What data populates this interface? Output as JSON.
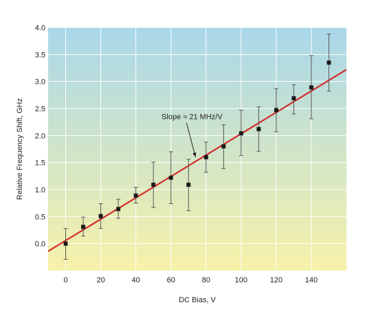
{
  "chart_data": {
    "type": "scatter",
    "xlabel": "DC Bias, V",
    "ylabel": "Relative Frequency Shift, GHz",
    "xlim": [
      -10,
      160
    ],
    "ylim": [
      -0.5,
      4.0
    ],
    "x_ticks": [
      0,
      20,
      40,
      60,
      80,
      100,
      120,
      140
    ],
    "y_ticks": [
      0.0,
      0.5,
      1.0,
      1.5,
      2.0,
      2.5,
      3.0,
      3.5,
      4.0
    ],
    "x_tick_labels": [
      "0",
      "20",
      "40",
      "60",
      "80",
      "100",
      "120",
      "140"
    ],
    "y_tick_labels": [
      "0.0",
      "0.5",
      "1.0",
      "1.5",
      "2.0",
      "2.5",
      "3.0",
      "3.5",
      "4.0"
    ],
    "grid": true,
    "background_gradient": [
      "#a9d7ea",
      "#f7f2a8"
    ],
    "series": [
      {
        "x": [
          0,
          10,
          20,
          30,
          40,
          50,
          60,
          70,
          80,
          90,
          100,
          110,
          120,
          130,
          140,
          150
        ],
        "y": [
          0.0,
          0.31,
          0.51,
          0.64,
          0.89,
          1.09,
          1.22,
          1.09,
          1.6,
          1.8,
          2.04,
          2.12,
          2.47,
          2.69,
          2.89,
          3.35
        ],
        "err_low": [
          -0.29,
          0.14,
          0.28,
          0.47,
          0.75,
          0.67,
          0.74,
          0.61,
          1.32,
          1.39,
          1.63,
          1.71,
          2.07,
          2.4,
          2.31,
          2.82
        ],
        "err_high": [
          0.28,
          0.49,
          0.74,
          0.82,
          1.04,
          1.51,
          1.7,
          1.56,
          1.88,
          2.2,
          2.47,
          2.53,
          2.87,
          2.94,
          3.48,
          3.88
        ],
        "marker_color": "#1a1a1a",
        "error_bar_color": "#555555"
      }
    ],
    "fit_line": {
      "x": [
        -10,
        160
      ],
      "y": [
        -0.14,
        3.22
      ],
      "color": "#d42a2a"
    },
    "annotations": [
      {
        "text": "Slope ≈ 21 MHz/V",
        "x": 72,
        "y": 2.3,
        "arrow_to": [
          74,
          1.6
        ]
      }
    ]
  }
}
